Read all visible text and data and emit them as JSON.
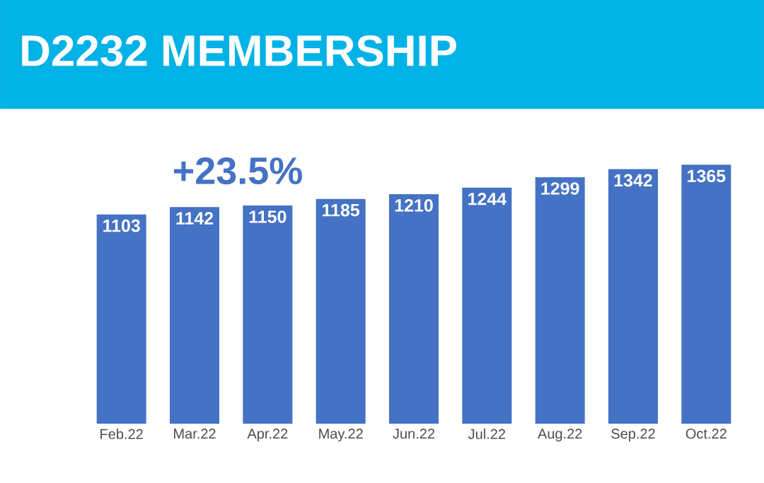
{
  "chart_data": {
    "type": "bar",
    "title": "D2232 MEMBERSHIP",
    "categories": [
      "Feb.22",
      "Mar.22",
      "Apr.22",
      "May.22",
      "Jun.22",
      "Jul.22",
      "Aug.22",
      "Sep.22",
      "Oct.22"
    ],
    "values": [
      1103,
      1142,
      1150,
      1185,
      1210,
      1244,
      1299,
      1342,
      1365
    ],
    "color": "#4472c4",
    "data_labels": true,
    "annotations": [
      "+23.5%"
    ]
  }
}
